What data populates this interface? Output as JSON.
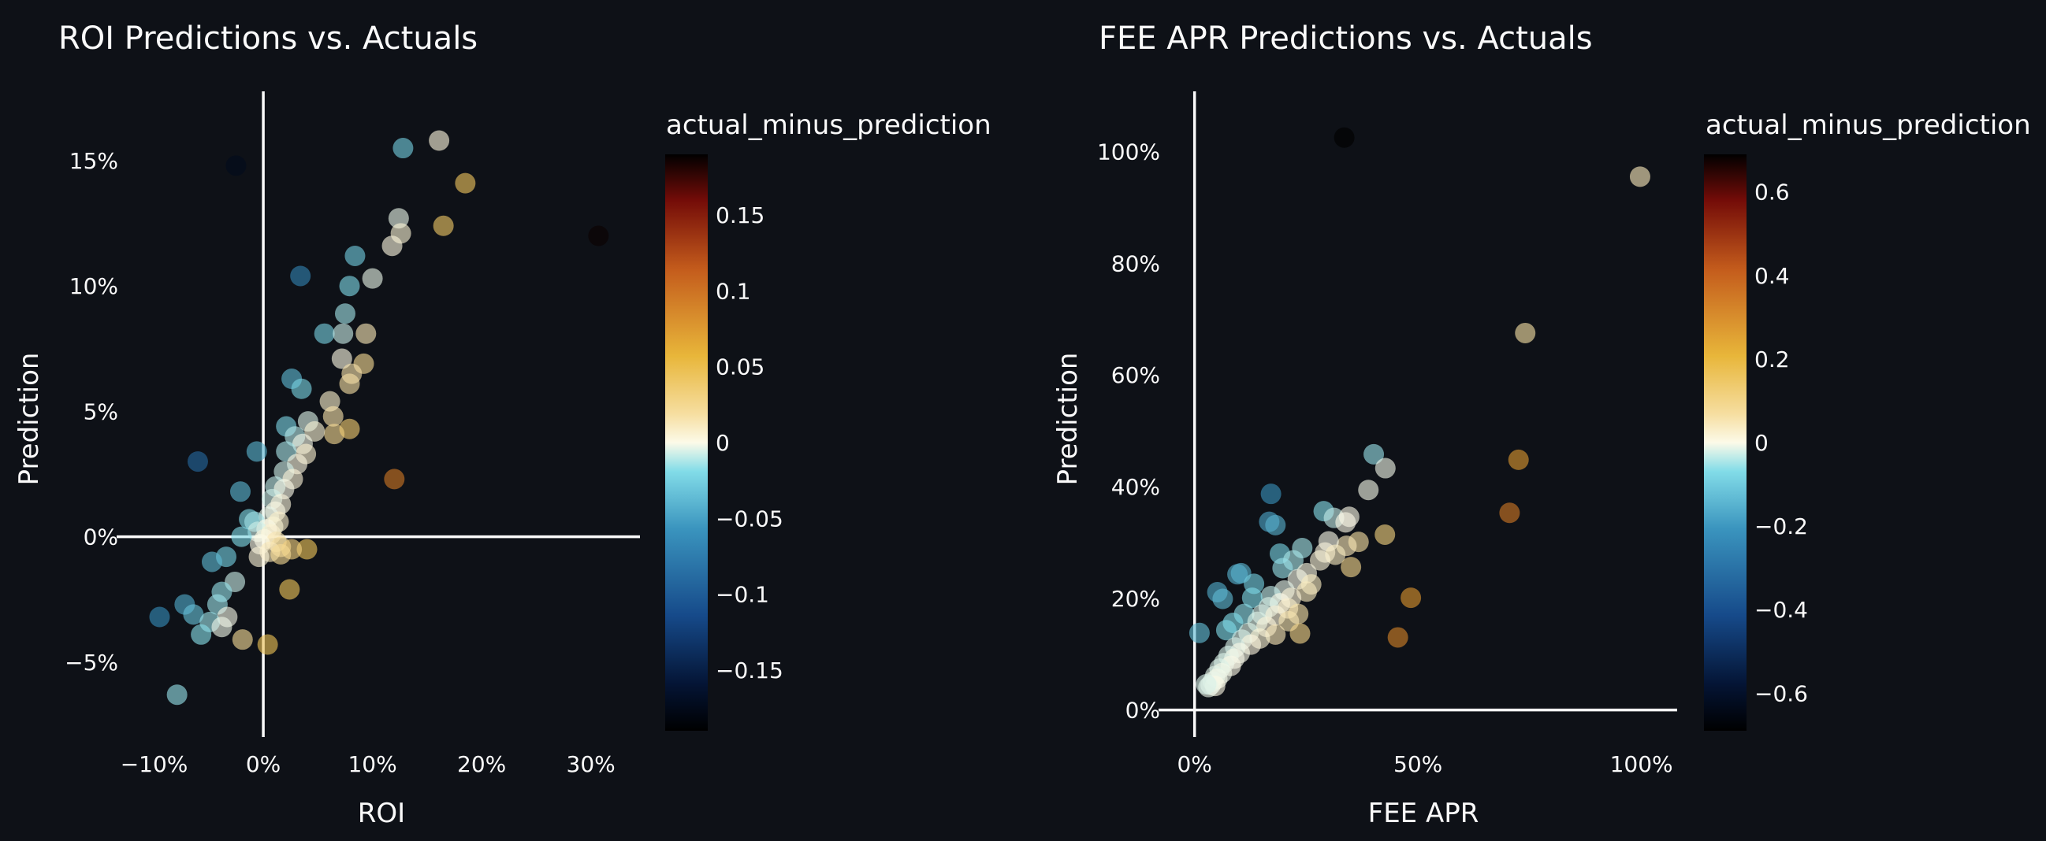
{
  "chart_data": [
    {
      "type": "scatter",
      "title": "ROI Predictions vs. Actuals",
      "xlabel": "ROI",
      "ylabel": "Prediction",
      "xlim": [
        -0.13,
        0.345
      ],
      "ylim": [
        -0.078,
        0.177
      ],
      "xticks": [
        -0.1,
        0,
        0.1,
        0.2,
        0.3
      ],
      "xtick_labels": [
        "−10%",
        "0%",
        "10%",
        "20%",
        "30%"
      ],
      "yticks": [
        -0.05,
        0,
        0.05,
        0.1,
        0.15
      ],
      "ytick_labels": [
        "−5%",
        "0%",
        "5%",
        "10%",
        "15%"
      ],
      "zero_lines": true,
      "grid": false,
      "color_field": "actual_minus_prediction",
      "color_range": [
        -0.19,
        0.19
      ],
      "colorbar_ticks": [
        0.15,
        0.1,
        0.05,
        0,
        -0.05,
        -0.1,
        -0.15
      ],
      "colorbar_tick_labels": [
        "0.15",
        "0.1",
        "0.05",
        "0",
        "−0.05",
        "−0.1",
        "−0.15"
      ],
      "points": [
        {
          "x": -0.025,
          "y": 0.148,
          "c": -0.173
        },
        {
          "x": 0.128,
          "y": 0.155,
          "c": -0.027
        },
        {
          "x": 0.161,
          "y": 0.158,
          "c": 0.003
        },
        {
          "x": 0.185,
          "y": 0.141,
          "c": 0.044
        },
        {
          "x": 0.307,
          "y": 0.12,
          "c": 0.187
        },
        {
          "x": 0.124,
          "y": 0.127,
          "c": -0.003
        },
        {
          "x": 0.118,
          "y": 0.116,
          "c": 0.002
        },
        {
          "x": 0.126,
          "y": 0.121,
          "c": 0.005
        },
        {
          "x": 0.165,
          "y": 0.124,
          "c": 0.041
        },
        {
          "x": 0.084,
          "y": 0.112,
          "c": -0.028
        },
        {
          "x": 0.034,
          "y": 0.104,
          "c": -0.07
        },
        {
          "x": 0.079,
          "y": 0.1,
          "c": -0.021
        },
        {
          "x": 0.1,
          "y": 0.103,
          "c": -0.003
        },
        {
          "x": 0.075,
          "y": 0.089,
          "c": -0.014
        },
        {
          "x": 0.056,
          "y": 0.081,
          "c": -0.025
        },
        {
          "x": 0.094,
          "y": 0.081,
          "c": 0.013
        },
        {
          "x": 0.073,
          "y": 0.081,
          "c": -0.008
        },
        {
          "x": 0.072,
          "y": 0.071,
          "c": 0.001
        },
        {
          "x": 0.092,
          "y": 0.069,
          "c": 0.023
        },
        {
          "x": 0.081,
          "y": 0.065,
          "c": 0.016
        },
        {
          "x": 0.079,
          "y": 0.061,
          "c": 0.018
        },
        {
          "x": 0.026,
          "y": 0.063,
          "c": -0.037
        },
        {
          "x": 0.035,
          "y": 0.059,
          "c": -0.024
        },
        {
          "x": 0.061,
          "y": 0.054,
          "c": 0.007
        },
        {
          "x": 0.064,
          "y": 0.048,
          "c": 0.016
        },
        {
          "x": 0.065,
          "y": 0.041,
          "c": 0.024
        },
        {
          "x": 0.079,
          "y": 0.043,
          "c": 0.036
        },
        {
          "x": 0.021,
          "y": 0.044,
          "c": -0.023
        },
        {
          "x": 0.041,
          "y": 0.046,
          "c": -0.005
        },
        {
          "x": 0.029,
          "y": 0.04,
          "c": -0.011
        },
        {
          "x": 0.047,
          "y": 0.042,
          "c": 0.005
        },
        {
          "x": 0.036,
          "y": 0.037,
          "c": -0.001
        },
        {
          "x": 0.039,
          "y": 0.033,
          "c": 0.006
        },
        {
          "x": 0.021,
          "y": 0.034,
          "c": -0.013
        },
        {
          "x": -0.006,
          "y": 0.034,
          "c": -0.04
        },
        {
          "x": -0.06,
          "y": 0.03,
          "c": -0.09
        },
        {
          "x": 0.031,
          "y": 0.029,
          "c": 0.002
        },
        {
          "x": 0.019,
          "y": 0.026,
          "c": -0.007
        },
        {
          "x": 0.027,
          "y": 0.023,
          "c": 0.004
        },
        {
          "x": 0.12,
          "y": 0.023,
          "c": 0.097
        },
        {
          "x": 0.011,
          "y": 0.02,
          "c": -0.009
        },
        {
          "x": 0.019,
          "y": 0.019,
          "c": 0.0
        },
        {
          "x": -0.021,
          "y": 0.018,
          "c": -0.039
        },
        {
          "x": 0.008,
          "y": 0.015,
          "c": -0.007
        },
        {
          "x": 0.016,
          "y": 0.013,
          "c": 0.003
        },
        {
          "x": 0.011,
          "y": 0.01,
          "c": 0.001
        },
        {
          "x": 0.005,
          "y": 0.008,
          "c": -0.003
        },
        {
          "x": -0.013,
          "y": 0.007,
          "c": -0.02
        },
        {
          "x": 0.014,
          "y": 0.006,
          "c": 0.008
        },
        {
          "x": -0.008,
          "y": 0.006,
          "c": -0.014
        },
        {
          "x": 0.009,
          "y": 0.004,
          "c": 0.005
        },
        {
          "x": 0.003,
          "y": 0.003,
          "c": 0.0
        },
        {
          "x": -0.005,
          "y": 0.002,
          "c": -0.007
        },
        {
          "x": 0.007,
          "y": 0.001,
          "c": 0.006
        },
        {
          "x": -0.02,
          "y": 0.0,
          "c": -0.02
        },
        {
          "x": 0.001,
          "y": -0.001,
          "c": 0.002
        },
        {
          "x": 0.012,
          "y": -0.002,
          "c": 0.014
        },
        {
          "x": -0.003,
          "y": -0.003,
          "c": 0.0
        },
        {
          "x": 0.016,
          "y": -0.004,
          "c": 0.02
        },
        {
          "x": 0.04,
          "y": -0.005,
          "c": 0.045
        },
        {
          "x": 0.006,
          "y": -0.006,
          "c": 0.012
        },
        {
          "x": 0.026,
          "y": -0.005,
          "c": 0.031
        },
        {
          "x": 0.016,
          "y": -0.007,
          "c": 0.023
        },
        {
          "x": -0.004,
          "y": -0.008,
          "c": 0.004
        },
        {
          "x": -0.034,
          "y": -0.008,
          "c": -0.026
        },
        {
          "x": -0.047,
          "y": -0.01,
          "c": -0.037
        },
        {
          "x": -0.026,
          "y": -0.018,
          "c": -0.008
        },
        {
          "x": 0.024,
          "y": -0.021,
          "c": 0.045
        },
        {
          "x": -0.038,
          "y": -0.022,
          "c": -0.016
        },
        {
          "x": -0.072,
          "y": -0.027,
          "c": -0.045
        },
        {
          "x": -0.042,
          "y": -0.027,
          "c": -0.015
        },
        {
          "x": -0.095,
          "y": -0.032,
          "c": -0.063
        },
        {
          "x": -0.064,
          "y": -0.031,
          "c": -0.033
        },
        {
          "x": -0.033,
          "y": -0.032,
          "c": -0.001
        },
        {
          "x": -0.049,
          "y": -0.034,
          "c": -0.015
        },
        {
          "x": -0.038,
          "y": -0.036,
          "c": -0.002
        },
        {
          "x": -0.057,
          "y": -0.039,
          "c": -0.018
        },
        {
          "x": -0.019,
          "y": -0.041,
          "c": 0.022
        },
        {
          "x": 0.004,
          "y": -0.043,
          "c": 0.047
        },
        {
          "x": -0.079,
          "y": -0.063,
          "c": -0.016
        }
      ]
    },
    {
      "type": "scatter",
      "title": "FEE APR Predictions vs. Actuals",
      "xlabel": "FEE APR",
      "ylabel": "Prediction",
      "xlim": [
        -0.07,
        1.08
      ],
      "ylim": [
        -0.04,
        1.105
      ],
      "xticks": [
        0,
        0.5,
        1.0
      ],
      "xtick_labels": [
        "0%",
        "50%",
        "100%"
      ],
      "yticks": [
        0,
        0.2,
        0.4,
        0.6,
        0.8,
        1.0
      ],
      "ytick_labels": [
        "0%",
        "20%",
        "40%",
        "60%",
        "80%",
        "100%"
      ],
      "zero_lines": true,
      "grid": false,
      "color_field": "actual_minus_prediction",
      "color_range": [
        -0.69,
        0.69
      ],
      "colorbar_ticks": [
        0.6,
        0.4,
        0.2,
        0,
        -0.2,
        -0.4,
        -0.6
      ],
      "colorbar_tick_labels": [
        "0.6",
        "0.4",
        "0.2",
        "0",
        "−0.2",
        "−0.4",
        "−0.6"
      ],
      "points": [
        {
          "x": 0.335,
          "y": 1.025,
          "c": -0.69
        },
        {
          "x": 0.997,
          "y": 0.955,
          "c": 0.042
        },
        {
          "x": 0.74,
          "y": 0.675,
          "c": 0.065
        },
        {
          "x": 0.725,
          "y": 0.448,
          "c": 0.277
        },
        {
          "x": 0.705,
          "y": 0.353,
          "c": 0.352
        },
        {
          "x": 0.484,
          "y": 0.201,
          "c": 0.283
        },
        {
          "x": 0.455,
          "y": 0.13,
          "c": 0.325
        },
        {
          "x": 0.401,
          "y": 0.458,
          "c": -0.057
        },
        {
          "x": 0.427,
          "y": 0.433,
          "c": -0.006
        },
        {
          "x": 0.389,
          "y": 0.394,
          "c": -0.005
        },
        {
          "x": 0.171,
          "y": 0.387,
          "c": -0.216
        },
        {
          "x": 0.167,
          "y": 0.337,
          "c": -0.17
        },
        {
          "x": 0.181,
          "y": 0.331,
          "c": -0.15
        },
        {
          "x": 0.289,
          "y": 0.356,
          "c": -0.067
        },
        {
          "x": 0.312,
          "y": 0.344,
          "c": -0.032
        },
        {
          "x": 0.346,
          "y": 0.346,
          "c": 0.0
        },
        {
          "x": 0.338,
          "y": 0.336,
          "c": 0.002
        },
        {
          "x": 0.367,
          "y": 0.301,
          "c": 0.066
        },
        {
          "x": 0.34,
          "y": 0.294,
          "c": 0.046
        },
        {
          "x": 0.426,
          "y": 0.314,
          "c": 0.112
        },
        {
          "x": 0.3,
          "y": 0.302,
          "c": -0.002
        },
        {
          "x": 0.292,
          "y": 0.282,
          "c": 0.01
        },
        {
          "x": 0.315,
          "y": 0.278,
          "c": 0.037
        },
        {
          "x": 0.281,
          "y": 0.268,
          "c": 0.013
        },
        {
          "x": 0.35,
          "y": 0.256,
          "c": 0.094
        },
        {
          "x": 0.241,
          "y": 0.29,
          "c": -0.049
        },
        {
          "x": 0.191,
          "y": 0.28,
          "c": -0.089
        },
        {
          "x": 0.221,
          "y": 0.268,
          "c": -0.047
        },
        {
          "x": 0.197,
          "y": 0.254,
          "c": -0.057
        },
        {
          "x": 0.104,
          "y": 0.245,
          "c": -0.141
        },
        {
          "x": 0.096,
          "y": 0.243,
          "c": -0.147
        },
        {
          "x": 0.133,
          "y": 0.226,
          "c": -0.093
        },
        {
          "x": 0.051,
          "y": 0.211,
          "c": -0.16
        },
        {
          "x": 0.063,
          "y": 0.199,
          "c": -0.136
        },
        {
          "x": 0.011,
          "y": 0.138,
          "c": -0.127
        },
        {
          "x": 0.251,
          "y": 0.245,
          "c": 0.006
        },
        {
          "x": 0.231,
          "y": 0.234,
          "c": -0.003
        },
        {
          "x": 0.261,
          "y": 0.225,
          "c": 0.036
        },
        {
          "x": 0.251,
          "y": 0.212,
          "c": 0.039
        },
        {
          "x": 0.201,
          "y": 0.214,
          "c": -0.013
        },
        {
          "x": 0.216,
          "y": 0.201,
          "c": 0.015
        },
        {
          "x": 0.171,
          "y": 0.204,
          "c": -0.033
        },
        {
          "x": 0.129,
          "y": 0.201,
          "c": -0.072
        },
        {
          "x": 0.191,
          "y": 0.191,
          "c": 0.0
        },
        {
          "x": 0.166,
          "y": 0.184,
          "c": -0.018
        },
        {
          "x": 0.209,
          "y": 0.182,
          "c": 0.027
        },
        {
          "x": 0.232,
          "y": 0.172,
          "c": 0.06
        },
        {
          "x": 0.111,
          "y": 0.172,
          "c": -0.061
        },
        {
          "x": 0.151,
          "y": 0.171,
          "c": -0.02
        },
        {
          "x": 0.181,
          "y": 0.169,
          "c": 0.012
        },
        {
          "x": 0.211,
          "y": 0.159,
          "c": 0.052
        },
        {
          "x": 0.141,
          "y": 0.158,
          "c": -0.017
        },
        {
          "x": 0.086,
          "y": 0.156,
          "c": -0.07
        },
        {
          "x": 0.161,
          "y": 0.149,
          "c": 0.012
        },
        {
          "x": 0.236,
          "y": 0.137,
          "c": 0.099
        },
        {
          "x": 0.121,
          "y": 0.138,
          "c": -0.017
        },
        {
          "x": 0.071,
          "y": 0.143,
          "c": -0.072
        },
        {
          "x": 0.181,
          "y": 0.135,
          "c": 0.046
        },
        {
          "x": 0.146,
          "y": 0.128,
          "c": 0.018
        },
        {
          "x": 0.106,
          "y": 0.126,
          "c": -0.02
        },
        {
          "x": 0.126,
          "y": 0.117,
          "c": 0.009
        },
        {
          "x": 0.091,
          "y": 0.112,
          "c": -0.021
        },
        {
          "x": 0.101,
          "y": 0.102,
          "c": -0.001
        },
        {
          "x": 0.076,
          "y": 0.097,
          "c": -0.021
        },
        {
          "x": 0.089,
          "y": 0.092,
          "c": -0.003
        },
        {
          "x": 0.066,
          "y": 0.084,
          "c": -0.018
        },
        {
          "x": 0.081,
          "y": 0.079,
          "c": 0.002
        },
        {
          "x": 0.056,
          "y": 0.074,
          "c": -0.018
        },
        {
          "x": 0.061,
          "y": 0.066,
          "c": -0.005
        },
        {
          "x": 0.046,
          "y": 0.061,
          "c": -0.015
        },
        {
          "x": 0.051,
          "y": 0.056,
          "c": -0.005
        },
        {
          "x": 0.041,
          "y": 0.051,
          "c": -0.01
        },
        {
          "x": 0.036,
          "y": 0.045,
          "c": -0.009
        },
        {
          "x": 0.046,
          "y": 0.043,
          "c": 0.003
        },
        {
          "x": 0.031,
          "y": 0.041,
          "c": -0.01
        },
        {
          "x": 0.026,
          "y": 0.046,
          "c": -0.02
        }
      ]
    }
  ]
}
